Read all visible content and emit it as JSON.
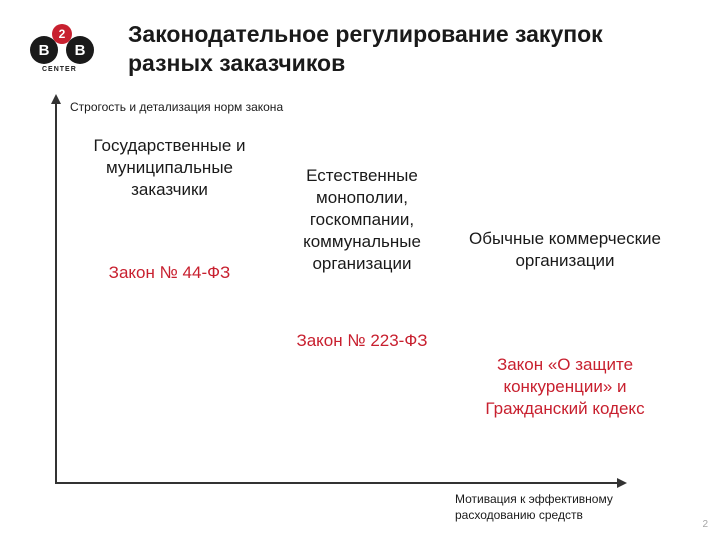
{
  "logo": {
    "b": "B",
    "two": "2",
    "center": "CENTER"
  },
  "title": "Законодательное регулирование закупок разных заказчиков",
  "axes": {
    "y_label": "Строгость и детализация норм закона",
    "x_label": "Мотивация к эффективному расходованию средств",
    "axis_color": "#333333"
  },
  "columns": [
    {
      "heading": "Государственные и муниципальные заказчики",
      "law": "Закон № 44-ФЗ"
    },
    {
      "heading": "Естественные монополии, госкомпании, коммунальные организации",
      "law": "Закон № 223-ФЗ"
    },
    {
      "heading": "Обычные коммерческие организации",
      "law": "Закон «О защите конкуренции» и Гражданский кодекс"
    }
  ],
  "colors": {
    "heading_text": "#1a1a1a",
    "law_text": "#c8202f",
    "label_text": "#1a1a1a",
    "background": "#ffffff",
    "logo_black": "#1a1a1a",
    "logo_red": "#c8202f",
    "page_num": "#a6a6a6"
  },
  "typography": {
    "title_fontsize": 23,
    "heading_fontsize": 17,
    "law_fontsize": 17,
    "label_fontsize": 12
  },
  "page_number": "2"
}
